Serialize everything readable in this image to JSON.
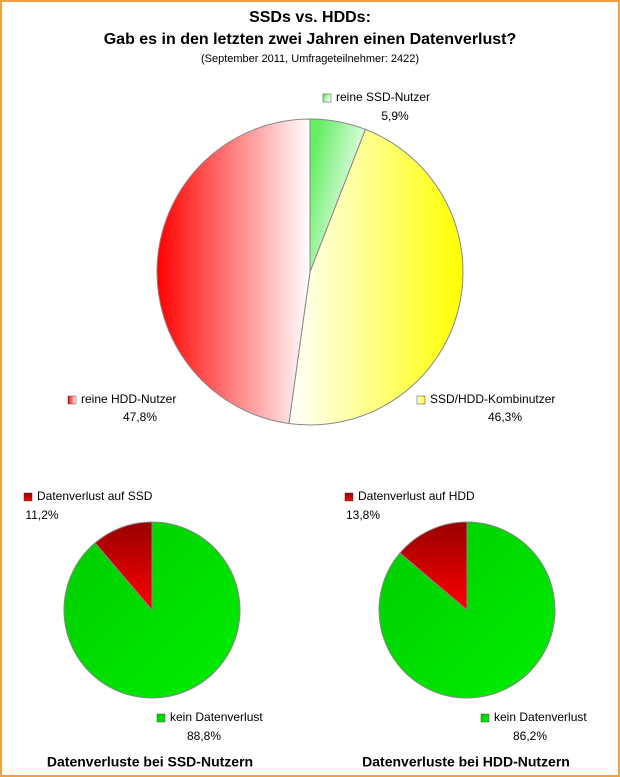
{
  "chart_data": [
    {
      "type": "pie",
      "title": [
        "SSDs vs. HDDs:",
        "Gab es in den letzten zwei Jahren einen Datenverlust?"
      ],
      "subtitle": "(September 2011, Umfrageteilnehmer: 2422)",
      "labels": [
        "reine SSD-Nutzer",
        "SSD/HDD-Kombinutzer",
        "reine HDD-Nutzer"
      ],
      "values": [
        5.9,
        46.3,
        47.8
      ],
      "value_labels": [
        "5,9%",
        "46,3%",
        "47,8%"
      ],
      "colors": [
        "#66ee66",
        "#ffff00",
        "#ff0000"
      ],
      "counterclock": false
    },
    {
      "type": "pie",
      "title": "Datenverluste bei SSD-Nutzern",
      "labels": [
        "Datenverlust auf SSD",
        "kein Datenverlust"
      ],
      "values": [
        11.2,
        88.8
      ],
      "value_labels": [
        "11,2%",
        "88,8%"
      ],
      "colors": [
        "#990000",
        "#00cc00"
      ],
      "counterclock": true
    },
    {
      "type": "pie",
      "title": "Datenverluste bei HDD-Nutzern",
      "labels": [
        "Datenverlust auf HDD",
        "kein Datenverlust"
      ],
      "values": [
        13.8,
        86.2
      ],
      "value_labels": [
        "13,8%",
        "86,2%"
      ],
      "colors": [
        "#990000",
        "#00cc00"
      ],
      "counterclock": true
    }
  ]
}
